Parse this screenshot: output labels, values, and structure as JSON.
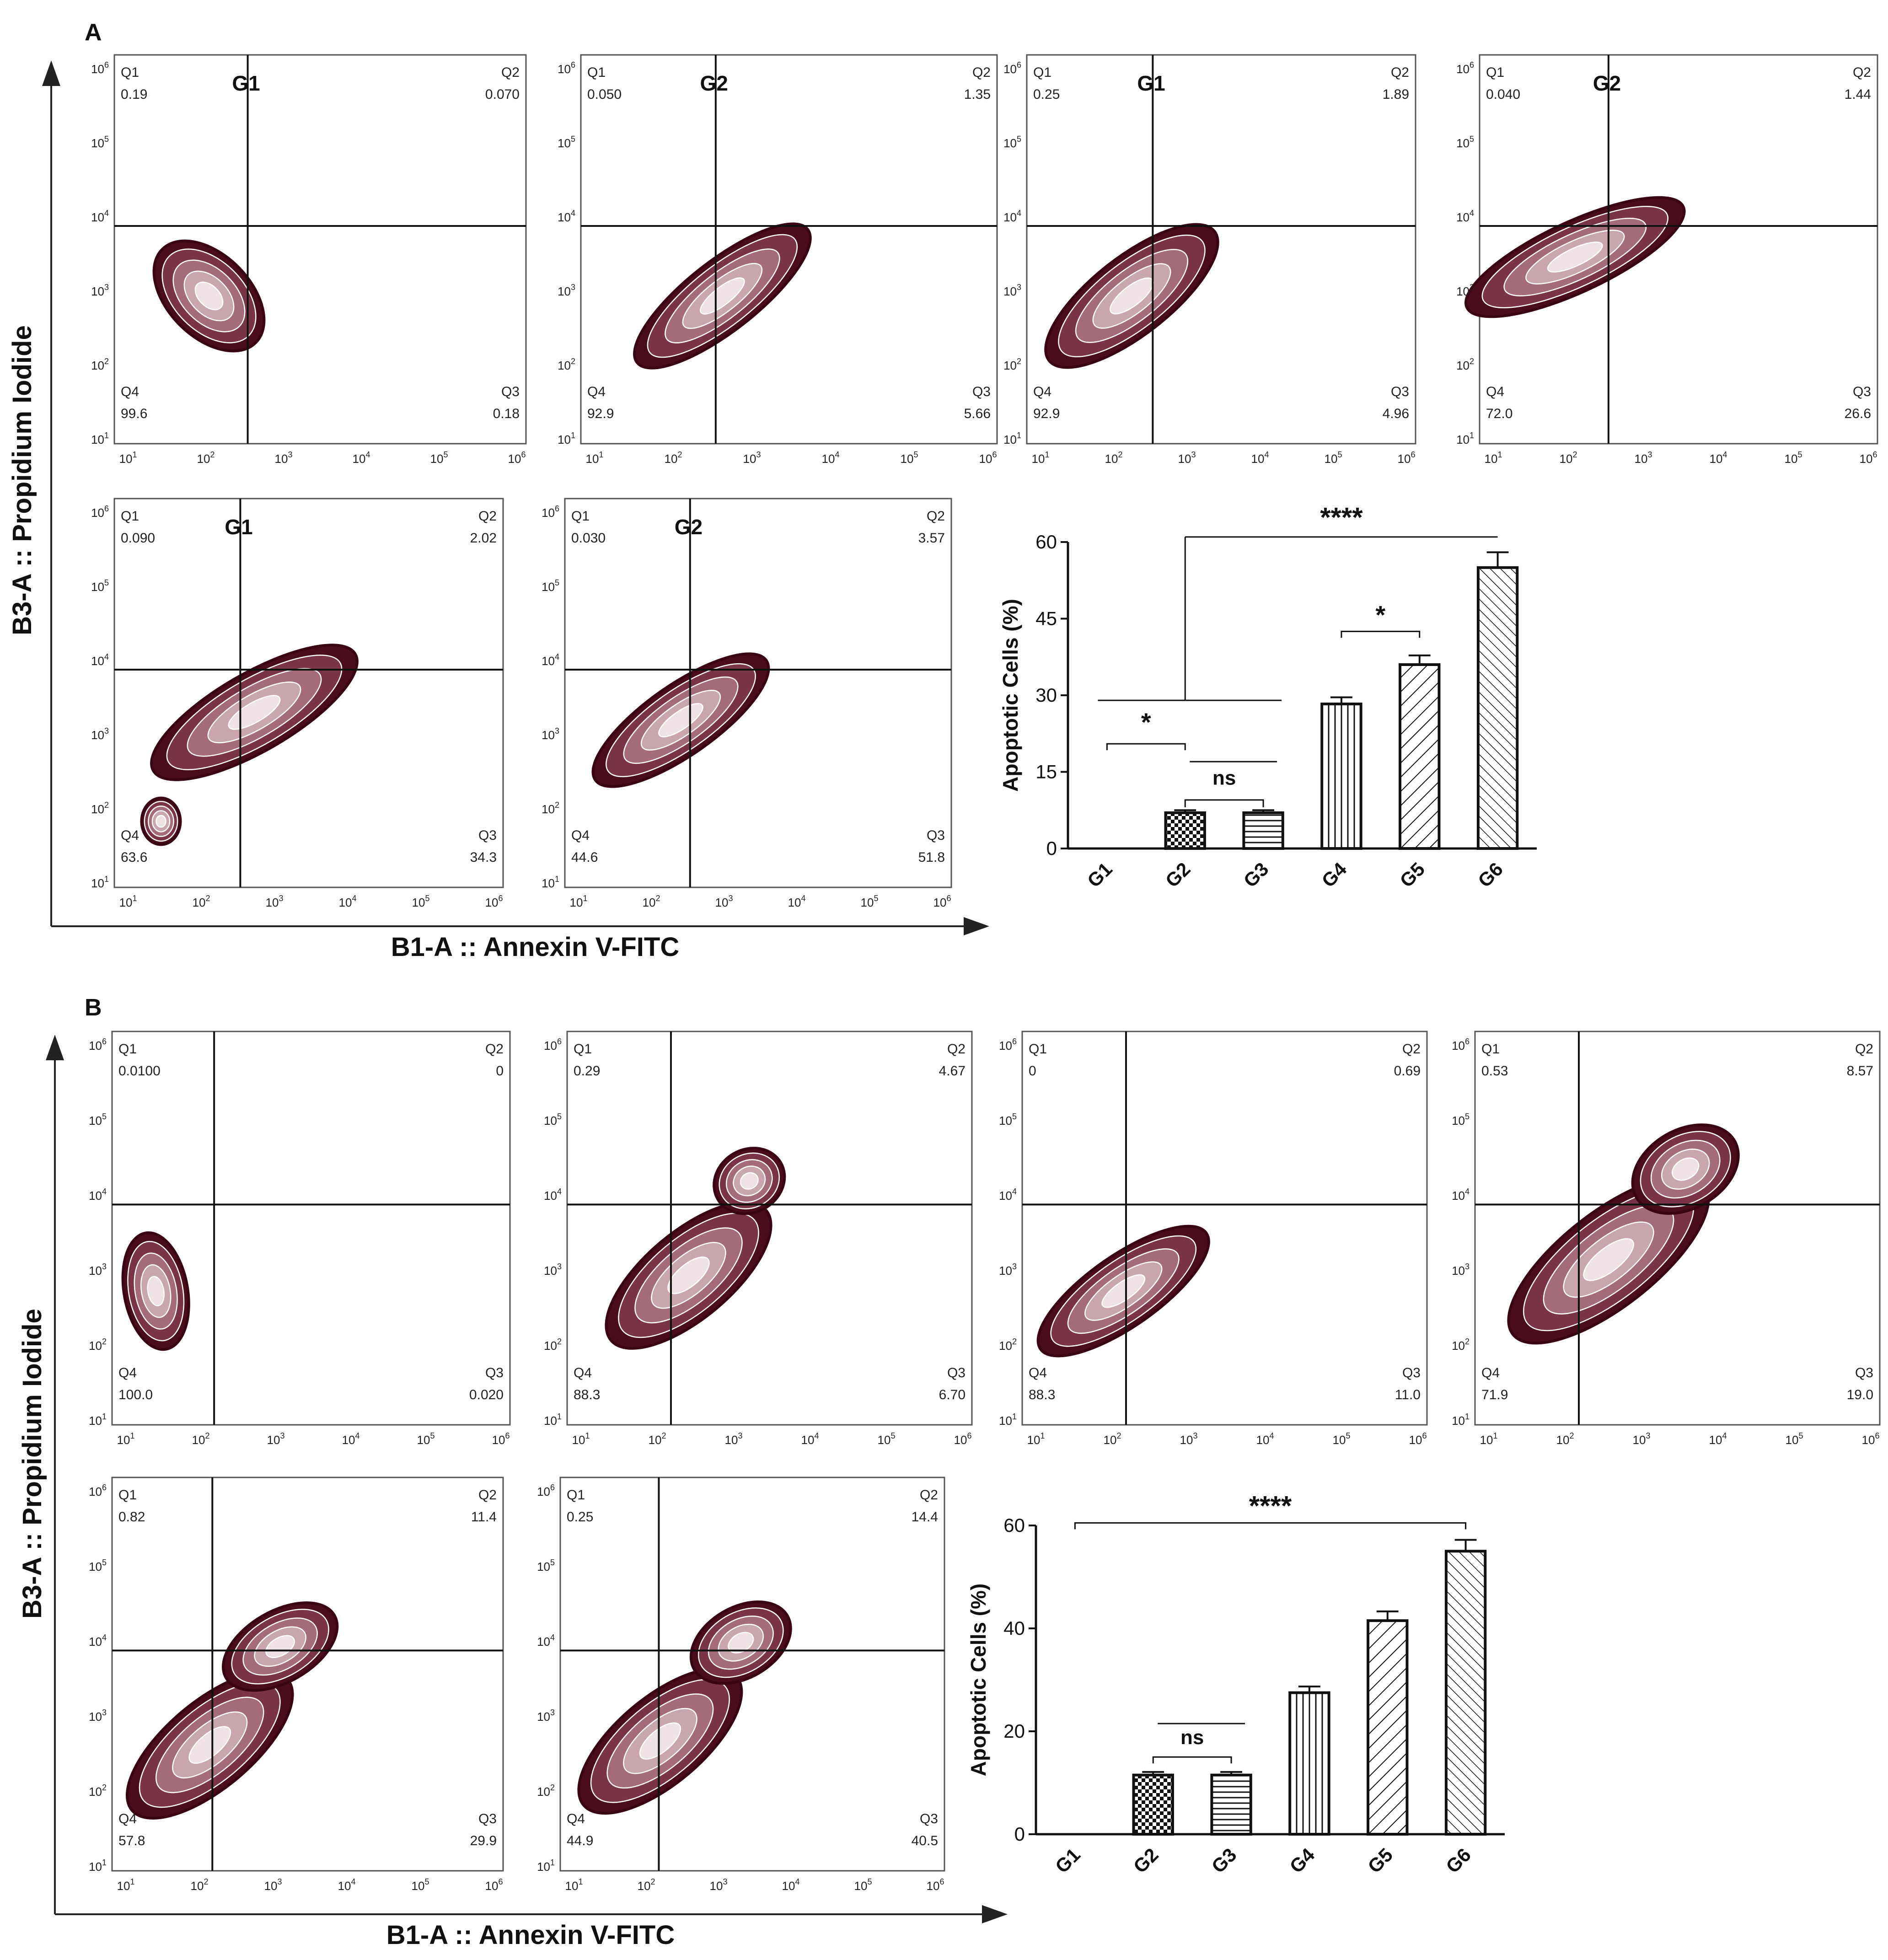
{
  "colors": {
    "contour_dark": "#4a0d1c",
    "contour_mid": "#7a3448",
    "contour_light": "#c9a5ae",
    "axis": "#222222",
    "background": "#ffffff"
  },
  "panel_labels": {
    "a": "A",
    "b": "B"
  },
  "axis_titles": {
    "y": "B3-A :: Propidium Iodide",
    "x": "B1-A :: Annexin V-FITC"
  },
  "flow_axis": {
    "scale": "log",
    "decades": [
      1,
      2,
      3,
      4,
      5,
      6
    ],
    "tick_base": "10"
  },
  "quadrant_labels": [
    "Q1",
    "Q2",
    "Q3",
    "Q4"
  ],
  "flow_plots_a": [
    {
      "title": "G1",
      "q1": "0.19",
      "q2": "0.070",
      "q3": "0.18",
      "q4": "99.6"
    },
    {
      "title": "G2",
      "q1": "0.050",
      "q2": "1.35",
      "q3": "5.66",
      "q4": "92.9"
    },
    {
      "title": "G1",
      "q1": "0.25",
      "q2": "1.89",
      "q3": "4.96",
      "q4": "92.9"
    },
    {
      "title": "G2",
      "q1": "0.040",
      "q2": "1.44",
      "q3": "26.6",
      "q4": "72.0"
    },
    {
      "title": "G1",
      "q1": "0.090",
      "q2": "2.02",
      "q3": "34.3",
      "q4": "63.6"
    },
    {
      "title": "G2",
      "q1": "0.030",
      "q2": "3.57",
      "q3": "51.8",
      "q4": "44.6"
    }
  ],
  "flow_plots_b": [
    {
      "title": "",
      "q1": "0.0100",
      "q2": "0",
      "q3": "0.020",
      "q4": "100.0"
    },
    {
      "title": "",
      "q1": "0.29",
      "q2": "4.67",
      "q3": "6.70",
      "q4": "88.3"
    },
    {
      "title": "",
      "q1": "0",
      "q2": "0.69",
      "q3": "11.0",
      "q4": "88.3"
    },
    {
      "title": "",
      "q1": "0.53",
      "q2": "8.57",
      "q3": "19.0",
      "q4": "71.9"
    },
    {
      "title": "",
      "q1": "0.82",
      "q2": "11.4",
      "q3": "29.9",
      "q4": "57.8"
    },
    {
      "title": "",
      "q1": "0.25",
      "q2": "14.4",
      "q3": "40.5",
      "q4": "44.9"
    }
  ],
  "chart_data": [
    {
      "type": "bar",
      "panel": "A",
      "categories": [
        "G1",
        "G2",
        "G3",
        "G4",
        "G5",
        "G6"
      ],
      "values": [
        0,
        7,
        7,
        28.3,
        36,
        55
      ],
      "errors": [
        0,
        0.5,
        0.5,
        1.3,
        1.8,
        3
      ],
      "ylabel": "Apoptotic Cells (%)",
      "ylim": [
        0,
        60
      ],
      "yticks": [
        0,
        15,
        30,
        45,
        60
      ],
      "significance": [
        {
          "label": "****",
          "from": "G1-G3",
          "to": "G6"
        },
        {
          "label": "*",
          "from": "G4",
          "to": "G5"
        },
        {
          "label": "*",
          "from": "G1",
          "to": "G2"
        },
        {
          "label": "ns",
          "from": "G2",
          "to": "G3"
        }
      ]
    },
    {
      "type": "bar",
      "panel": "B",
      "categories": [
        "G1",
        "G2",
        "G3",
        "G4",
        "G5",
        "G6"
      ],
      "values": [
        0,
        11.5,
        11.5,
        27.5,
        41.5,
        55
      ],
      "errors": [
        0,
        0.6,
        0.6,
        1.2,
        1.8,
        2.2
      ],
      "ylabel": "Apoptotic Cells (%)",
      "ylim": [
        0,
        60
      ],
      "yticks": [
        0,
        20,
        40,
        60
      ],
      "significance": [
        {
          "label": "****",
          "from": "G1",
          "to": "G6"
        },
        {
          "label": "ns",
          "from": "G2",
          "to": "G3"
        }
      ]
    }
  ]
}
